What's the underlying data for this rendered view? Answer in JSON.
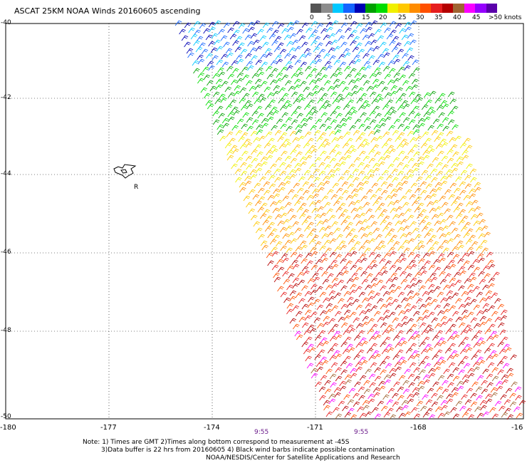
{
  "title": "ASCAT 25KM NOAA Winds 20160605 ascending",
  "legend": {
    "labels": [
      "0",
      "5",
      "10",
      "15",
      "20",
      "25",
      "30",
      "35",
      "40",
      "45",
      ">50 knots"
    ],
    "colors": [
      "#555555",
      "#8c8c8c",
      "#00c8ff",
      "#1464ff",
      "#0000b4",
      "#00a000",
      "#00dc00",
      "#f0f000",
      "#ffc800",
      "#ff8c00",
      "#ff5000",
      "#e61e1e",
      "#b40000",
      "#a06432",
      "#fa00ff",
      "#9600ff",
      "#5a00aa"
    ]
  },
  "map": {
    "lat_labels": [
      "-40",
      "-42",
      "-44",
      "-46",
      "-48",
      "-50"
    ],
    "lon_labels": [
      "-180",
      "-177",
      "-174",
      "-171",
      "-168",
      "-16"
    ],
    "pass_times": [
      "9:55",
      "9:55"
    ],
    "land_label": "R"
  },
  "notes": {
    "line1": "Note: 1) Times are GMT 2)Times along bottom correspond to measurement at -45S",
    "line2": "3)Data buffer is 22 hrs from 20160605 4) Black wind barbs indicate possible contamination",
    "line3": "NOAA/NESDIS/Center for Satellite Applications and Research"
  }
}
